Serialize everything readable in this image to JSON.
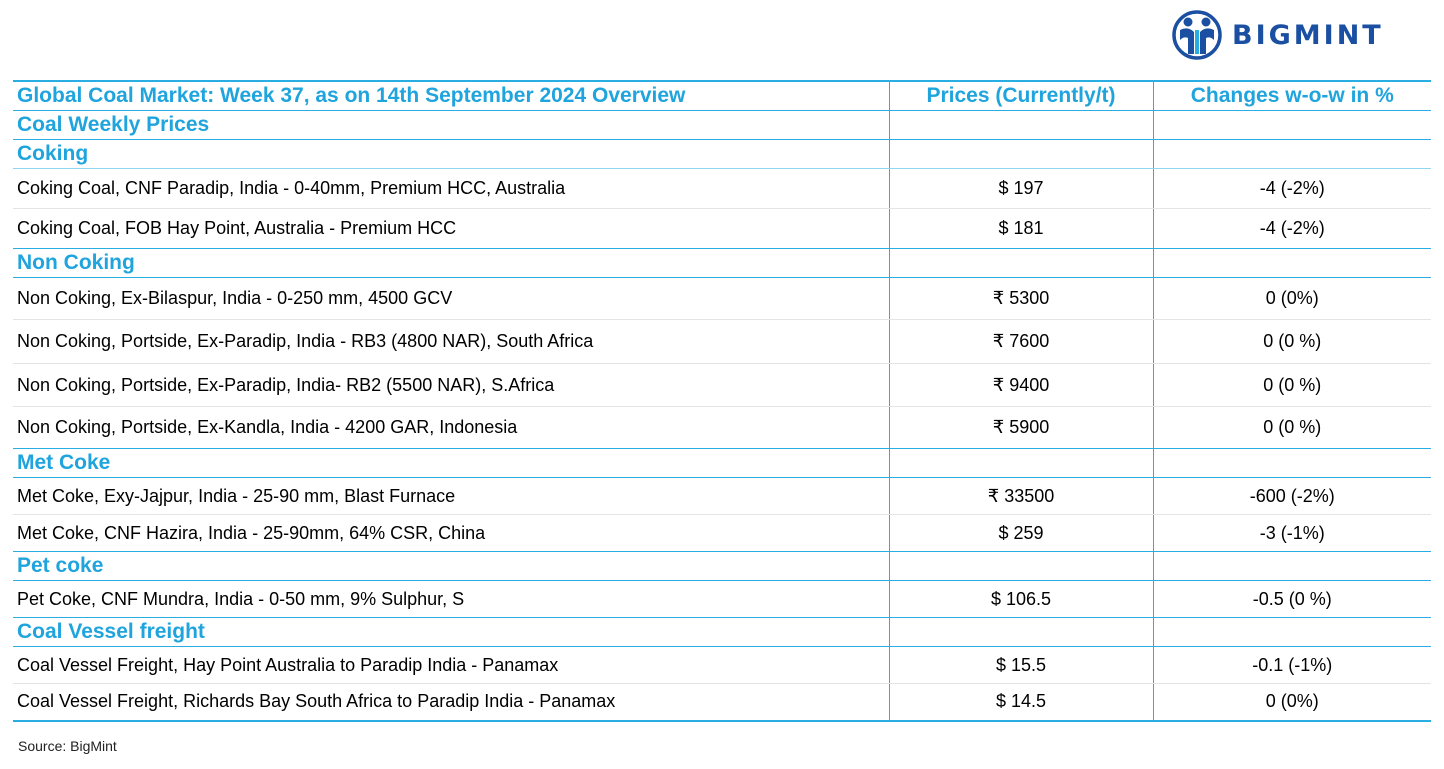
{
  "brand": {
    "name": "BIGMINT",
    "color": "#1a4fa1",
    "accent": "#29aee3"
  },
  "table": {
    "headers": {
      "title": "Global Coal Market: Week 37, as on 14th September 2024 Overview",
      "prices": "Prices (Currently/t)",
      "changes": "Changes w-o-w in %"
    },
    "section_title": "Coal Weekly Prices",
    "groups": [
      {
        "name": "Coking",
        "rows": [
          {
            "label": "Coking Coal, CNF Paradip, India - 0-40mm, Premium HCC, Australia",
            "price": "$ 197",
            "change": "-4 (-2%)",
            "trend": "neg"
          },
          {
            "label": "Coking Coal, FOB Hay Point, Australia - Premium HCC",
            "price": "$ 181",
            "change": "-4 (-2%)",
            "trend": "neg"
          }
        ]
      },
      {
        "name": "Non Coking",
        "rows": [
          {
            "label": "Non Coking, Ex-Bilaspur, India - 0-250 mm, 4500 GCV",
            "price": "₹ 5300",
            "change": "0 (0%)",
            "trend": "pos"
          },
          {
            "label": "Non Coking, Portside, Ex-Paradip, India - RB3 (4800 NAR), South Africa",
            "price": "₹ 7600",
            "change": "0 (0 %)",
            "trend": "pos"
          },
          {
            "label": "Non Coking, Portside, Ex-Paradip, India- RB2 (5500 NAR), S.Africa",
            "price": "₹ 9400",
            "change": "0 (0 %)",
            "trend": "pos"
          },
          {
            "label": "Non Coking, Portside, Ex-Kandla, India - 4200 GAR, Indonesia",
            "price": "₹ 5900",
            "change": "0 (0 %)",
            "trend": "pos"
          }
        ]
      },
      {
        "name": "Met Coke",
        "rows": [
          {
            "label": "Met Coke, Exy-Jajpur, India - 25-90 mm, Blast Furnace",
            "price": "₹ 33500",
            "change": "-600 (-2%)",
            "trend": "neg"
          },
          {
            "label": "Met Coke, CNF Hazira, India - 25-90mm, 64% CSR, China",
            "price": "$ 259",
            "change": "-3 (-1%)",
            "trend": "neg"
          }
        ]
      },
      {
        "name": "Pet coke",
        "rows": [
          {
            "label": "Pet Coke, CNF Mundra, India - 0-50 mm, 9% Sulphur, S",
            "price": "$ 106.5",
            "change": "-0.5 (0 %)",
            "trend": "neg"
          }
        ]
      },
      {
        "name": "Coal Vessel freight",
        "rows": [
          {
            "label": "Coal Vessel Freight, Hay Point Australia to Paradip India - Panamax",
            "price": "$ 15.5",
            "change": "-0.1 (-1%)",
            "trend": "neg"
          },
          {
            "label": "Coal Vessel Freight, Richards Bay South Africa to Paradip India - Panamax",
            "price": "$ 14.5",
            "change": "0 (0%)",
            "trend": "pos"
          }
        ]
      }
    ]
  },
  "source": "Source: BigMint",
  "colors": {
    "negative": "#ee1c1c",
    "positive": "#19a64a",
    "heading": "#1fa4dd",
    "border": "#29aee3"
  }
}
